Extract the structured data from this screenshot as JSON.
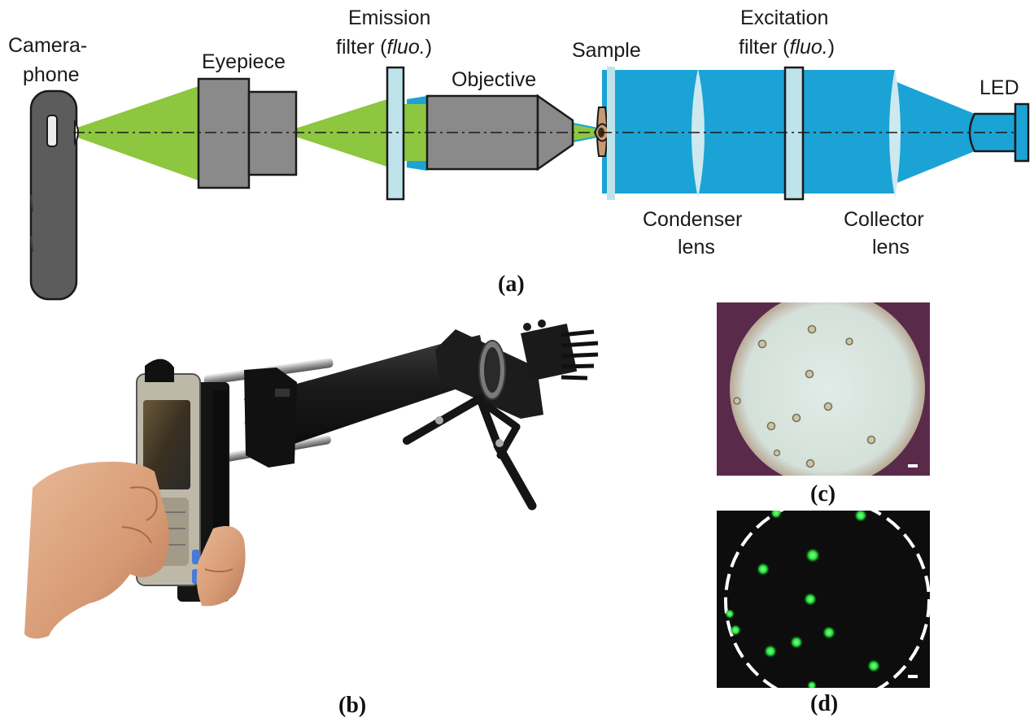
{
  "labels": {
    "cameraphone_line1": "Camera-",
    "cameraphone_line2": "phone",
    "eyepiece": "Eyepiece",
    "emission_line1": "Emission",
    "emission_line2_a": "filter (",
    "emission_line2_b": "fluo.",
    "emission_line2_c": ")",
    "objective": "Objective",
    "sample": "Sample",
    "excitation_line1": "Excitation",
    "excitation_line2_a": "filter (",
    "excitation_line2_b": "fluo.",
    "excitation_line2_c": ")",
    "led": "LED",
    "condenser_line1": "Condenser",
    "condenser_line2": "lens",
    "collector_line1": "Collector",
    "collector_line2": "lens"
  },
  "captions": {
    "a": "(a)",
    "b": "(b)",
    "c": "(c)",
    "d": "(d)"
  },
  "colors": {
    "emission_light": "#8dc63f",
    "excitation_light": "#1ba3d6",
    "component_gray": "#8a8a8a",
    "filter_cyan": "#bfe3ea",
    "lens_cyan": "#cde9ef",
    "sample_tan": "#c89a72",
    "phone_dark": "#5c5c5c",
    "brightfield_bg": "#5a2a4a",
    "brightfield_field": "#d9e4df",
    "fluorescence_bg": "#0d0d0d",
    "fluorescent_bead": "#22e03a"
  }
}
